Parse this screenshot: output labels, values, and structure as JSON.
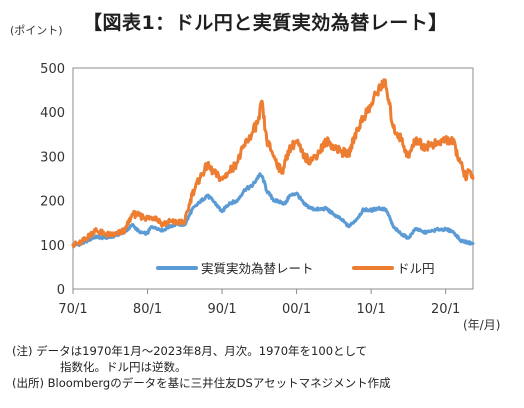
{
  "header": {
    "unit": "(ポイント)",
    "title": "【図表1：ドル円と実質実効為替レート】"
  },
  "x_unit": "(年/月)",
  "notes": {
    "line1": "(注) データは1970年1月～2023年8月、月次。1970年を100として",
    "line2": "指数化。ドル円は逆数。",
    "line3": "(出所) Bloombergのデータを基に三井住友DSアセットマネジメント作成"
  },
  "chart_data": {
    "type": "line",
    "title": "【図表1：ドル円と実質実効為替レート】",
    "ylabel": "(ポイント)",
    "xlabel": "(年/月)",
    "ylim": [
      0,
      500
    ],
    "yticks": [
      "0",
      "100",
      "200",
      "300",
      "400",
      "500"
    ],
    "xlim": [
      1970.0,
      2023.67
    ],
    "xticks": [
      {
        "x": 1970,
        "label": "70/1"
      },
      {
        "x": 1980,
        "label": "80/1"
      },
      {
        "x": 1990,
        "label": "90/1"
      },
      {
        "x": 2000,
        "label": "00/1"
      },
      {
        "x": 2010,
        "label": "10/1"
      },
      {
        "x": 2020,
        "label": "20/1"
      }
    ],
    "grid": false,
    "legend_position": "bottom-center",
    "series": [
      {
        "name": "実質実効為替レート",
        "color": "#5b9bd5",
        "points": [
          [
            1970.0,
            100
          ],
          [
            1971.0,
            101
          ],
          [
            1972.0,
            110
          ],
          [
            1973.0,
            118
          ],
          [
            1974.0,
            116
          ],
          [
            1975.0,
            117
          ],
          [
            1976.0,
            123
          ],
          [
            1977.0,
            130
          ],
          [
            1978.0,
            145
          ],
          [
            1979.0,
            127
          ],
          [
            1980.0,
            126
          ],
          [
            1980.5,
            141
          ],
          [
            1981.0,
            140
          ],
          [
            1982.0,
            132
          ],
          [
            1983.0,
            142
          ],
          [
            1984.0,
            147
          ],
          [
            1985.0,
            145
          ],
          [
            1986.0,
            180
          ],
          [
            1987.0,
            196
          ],
          [
            1988.0,
            212
          ],
          [
            1989.0,
            196
          ],
          [
            1990.0,
            175
          ],
          [
            1990.5,
            185
          ],
          [
            1991.0,
            195
          ],
          [
            1992.0,
            198
          ],
          [
            1993.0,
            225
          ],
          [
            1994.0,
            232
          ],
          [
            1995.0,
            258
          ],
          [
            1995.4,
            255
          ],
          [
            1996.0,
            222
          ],
          [
            1997.0,
            200
          ],
          [
            1998.0,
            196
          ],
          [
            1998.5,
            193
          ],
          [
            1999.0,
            210
          ],
          [
            2000.0,
            217
          ],
          [
            2001.0,
            192
          ],
          [
            2002.0,
            182
          ],
          [
            2003.0,
            180
          ],
          [
            2004.0,
            182
          ],
          [
            2005.0,
            168
          ],
          [
            2006.0,
            158
          ],
          [
            2007.0,
            141
          ],
          [
            2008.0,
            157
          ],
          [
            2009.0,
            180
          ],
          [
            2010.0,
            178
          ],
          [
            2011.0,
            183
          ],
          [
            2012.0,
            180
          ],
          [
            2013.0,
            140
          ],
          [
            2014.0,
            125
          ],
          [
            2015.0,
            115
          ],
          [
            2016.0,
            137
          ],
          [
            2017.0,
            128
          ],
          [
            2018.0,
            130
          ],
          [
            2019.0,
            135
          ],
          [
            2020.0,
            135
          ],
          [
            2021.0,
            130
          ],
          [
            2022.0,
            110
          ],
          [
            2023.0,
            105
          ],
          [
            2023.67,
            103
          ]
        ]
      },
      {
        "name": "ドル円",
        "color": "#ed7d31",
        "points": [
          [
            1970.0,
            100
          ],
          [
            1971.0,
            104
          ],
          [
            1972.0,
            118
          ],
          [
            1973.0,
            133
          ],
          [
            1974.0,
            126
          ],
          [
            1975.0,
            122
          ],
          [
            1976.0,
            125
          ],
          [
            1977.0,
            134
          ],
          [
            1978.0,
            170
          ],
          [
            1979.0,
            165
          ],
          [
            1980.0,
            160
          ],
          [
            1981.0,
            163
          ],
          [
            1982.0,
            147
          ],
          [
            1983.0,
            152
          ],
          [
            1984.0,
            150
          ],
          [
            1985.0,
            152
          ],
          [
            1986.0,
            215
          ],
          [
            1987.0,
            250
          ],
          [
            1988.0,
            280
          ],
          [
            1989.0,
            262
          ],
          [
            1990.0,
            248
          ],
          [
            1991.0,
            267
          ],
          [
            1992.0,
            285
          ],
          [
            1993.0,
            325
          ],
          [
            1994.0,
            352
          ],
          [
            1995.0,
            385
          ],
          [
            1995.3,
            425
          ],
          [
            1996.0,
            335
          ],
          [
            1997.0,
            300
          ],
          [
            1998.0,
            262
          ],
          [
            1999.0,
            315
          ],
          [
            2000.0,
            335
          ],
          [
            2001.0,
            298
          ],
          [
            2002.0,
            290
          ],
          [
            2003.0,
            310
          ],
          [
            2004.0,
            335
          ],
          [
            2005.0,
            323
          ],
          [
            2006.0,
            310
          ],
          [
            2007.0,
            305
          ],
          [
            2008.0,
            355
          ],
          [
            2009.0,
            390
          ],
          [
            2010.0,
            415
          ],
          [
            2011.0,
            455
          ],
          [
            2011.8,
            470
          ],
          [
            2012.0,
            455
          ],
          [
            2013.0,
            365
          ],
          [
            2014.0,
            340
          ],
          [
            2015.0,
            298
          ],
          [
            2016.0,
            340
          ],
          [
            2017.0,
            322
          ],
          [
            2018.0,
            326
          ],
          [
            2019.0,
            330
          ],
          [
            2020.0,
            338
          ],
          [
            2021.0,
            332
          ],
          [
            2022.0,
            285
          ],
          [
            2022.8,
            248
          ],
          [
            2023.0,
            270
          ],
          [
            2023.67,
            250
          ]
        ]
      }
    ]
  }
}
